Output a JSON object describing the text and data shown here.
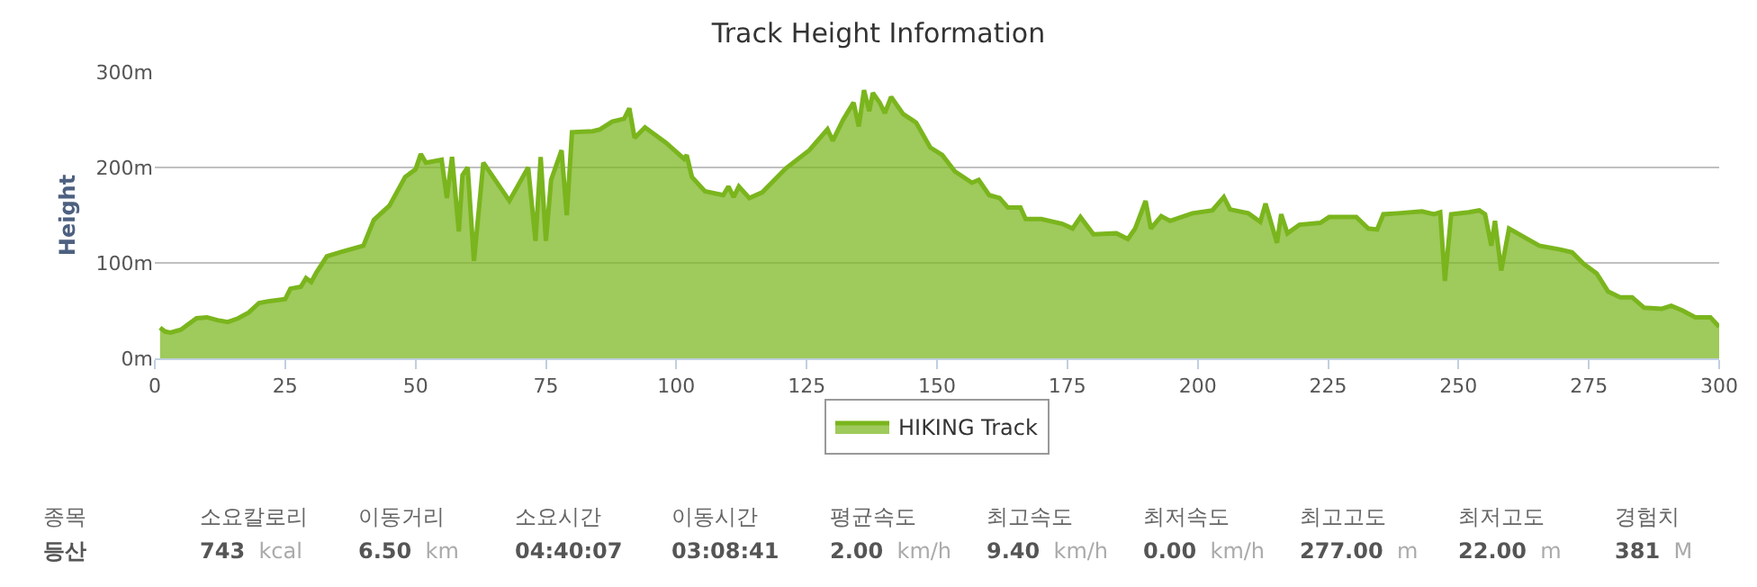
{
  "chart_data": {
    "type": "area",
    "title": "Track Height Information",
    "ylabel": "Height",
    "x": [
      1,
      2,
      3,
      5,
      8,
      10,
      12,
      14,
      16,
      18,
      20,
      22,
      25,
      26,
      28,
      29,
      30,
      31,
      33,
      36,
      40,
      42,
      45,
      48,
      50,
      51,
      52,
      55,
      56,
      57,
      58.3,
      59,
      60,
      61.2,
      63,
      68,
      71.6,
      73,
      74,
      75,
      76,
      78,
      79,
      80,
      84,
      85.4,
      87.7,
      90,
      91,
      92,
      94,
      98,
      101.5,
      102,
      103,
      105.5,
      109,
      110,
      111,
      112,
      114,
      116.5,
      121,
      125.5,
      129,
      130,
      132,
      134,
      135,
      136,
      137,
      137.7,
      139,
      140,
      141.2,
      143.5,
      146,
      148.7,
      151,
      153.4,
      156.7,
      158,
      160,
      162,
      163.6,
      166,
      167,
      170,
      174,
      176,
      177.5,
      180,
      184.4,
      186.6,
      188,
      190,
      191,
      193,
      194.7,
      199,
      202.8,
      205,
      206.2,
      209.7,
      212,
      213,
      215.2,
      216,
      217.2,
      219.5,
      223.5,
      225.2,
      230.4,
      232.7,
      234.4,
      235.6,
      238.4,
      243,
      245.3,
      246.5,
      247.4,
      248.6,
      252,
      254,
      255.1,
      256.3,
      257,
      258.2,
      259.7,
      262.6,
      265.5,
      269.5,
      271.8,
      274,
      276.5,
      278.7,
      281,
      283.3,
      285.6,
      289,
      290.8,
      293,
      295.4,
      298.3,
      300
    ],
    "series": [
      {
        "name": "HIKING Track",
        "color": "#7ab51d",
        "values": [
          32,
          28,
          27,
          30,
          42,
          43,
          40,
          38,
          42,
          48,
          58,
          60,
          62,
          73,
          75,
          84,
          80,
          90,
          107,
          112,
          118,
          145,
          160,
          190,
          198,
          214,
          205,
          208,
          168,
          211,
          133,
          192,
          200,
          102,
          205,
          165,
          200,
          123,
          211,
          123,
          187,
          218,
          150,
          237,
          238,
          240,
          248,
          251,
          262,
          231,
          242,
          226,
          209,
          213,
          190,
          175,
          171,
          180,
          169,
          180,
          168,
          174,
          199,
          218,
          240,
          228,
          250,
          268,
          243,
          281,
          259,
          278,
          268,
          257,
          274,
          256,
          247,
          221,
          213,
          196,
          184,
          187,
          171,
          168,
          158,
          158,
          146,
          146,
          141,
          136,
          148,
          130,
          131,
          125,
          136,
          165,
          136,
          149,
          144,
          152,
          155,
          169,
          156,
          152,
          143,
          162,
          121,
          151,
          131,
          140,
          142,
          148,
          148,
          136,
          135,
          151,
          152,
          154,
          151,
          153,
          81,
          151,
          153,
          155,
          151,
          118,
          144,
          92,
          136,
          127,
          118,
          114,
          111,
          99,
          89,
          70,
          64,
          64,
          53,
          52,
          55,
          50,
          43,
          43,
          33
        ]
      }
    ],
    "xlim": [
      0,
      300
    ],
    "ylim": [
      0,
      300
    ],
    "xticks": [
      0,
      25,
      50,
      75,
      100,
      125,
      150,
      175,
      200,
      225,
      250,
      275,
      300
    ],
    "yticks": [
      {
        "value": 0,
        "label": "0m"
      },
      {
        "value": 100,
        "label": "100m"
      },
      {
        "value": 200,
        "label": "200m"
      },
      {
        "value": 300,
        "label": "300m"
      }
    ],
    "grid": "y",
    "legend": "bottom",
    "annotations": [
      "종목",
      "소요칼로리",
      "이동거리",
      "소요시간",
      "이동시간",
      "평균속도",
      "최고속도",
      "최저속도",
      "최고고도",
      "최저고도",
      "경험치",
      "등산",
      "743 kcal",
      "6.50 km",
      "04:40:07",
      "03:08:41",
      "2.00 km/h",
      "9.40 km/h",
      "0.00 km/h",
      "277.00 m",
      "22.00 m",
      "381 M"
    ]
  }
}
